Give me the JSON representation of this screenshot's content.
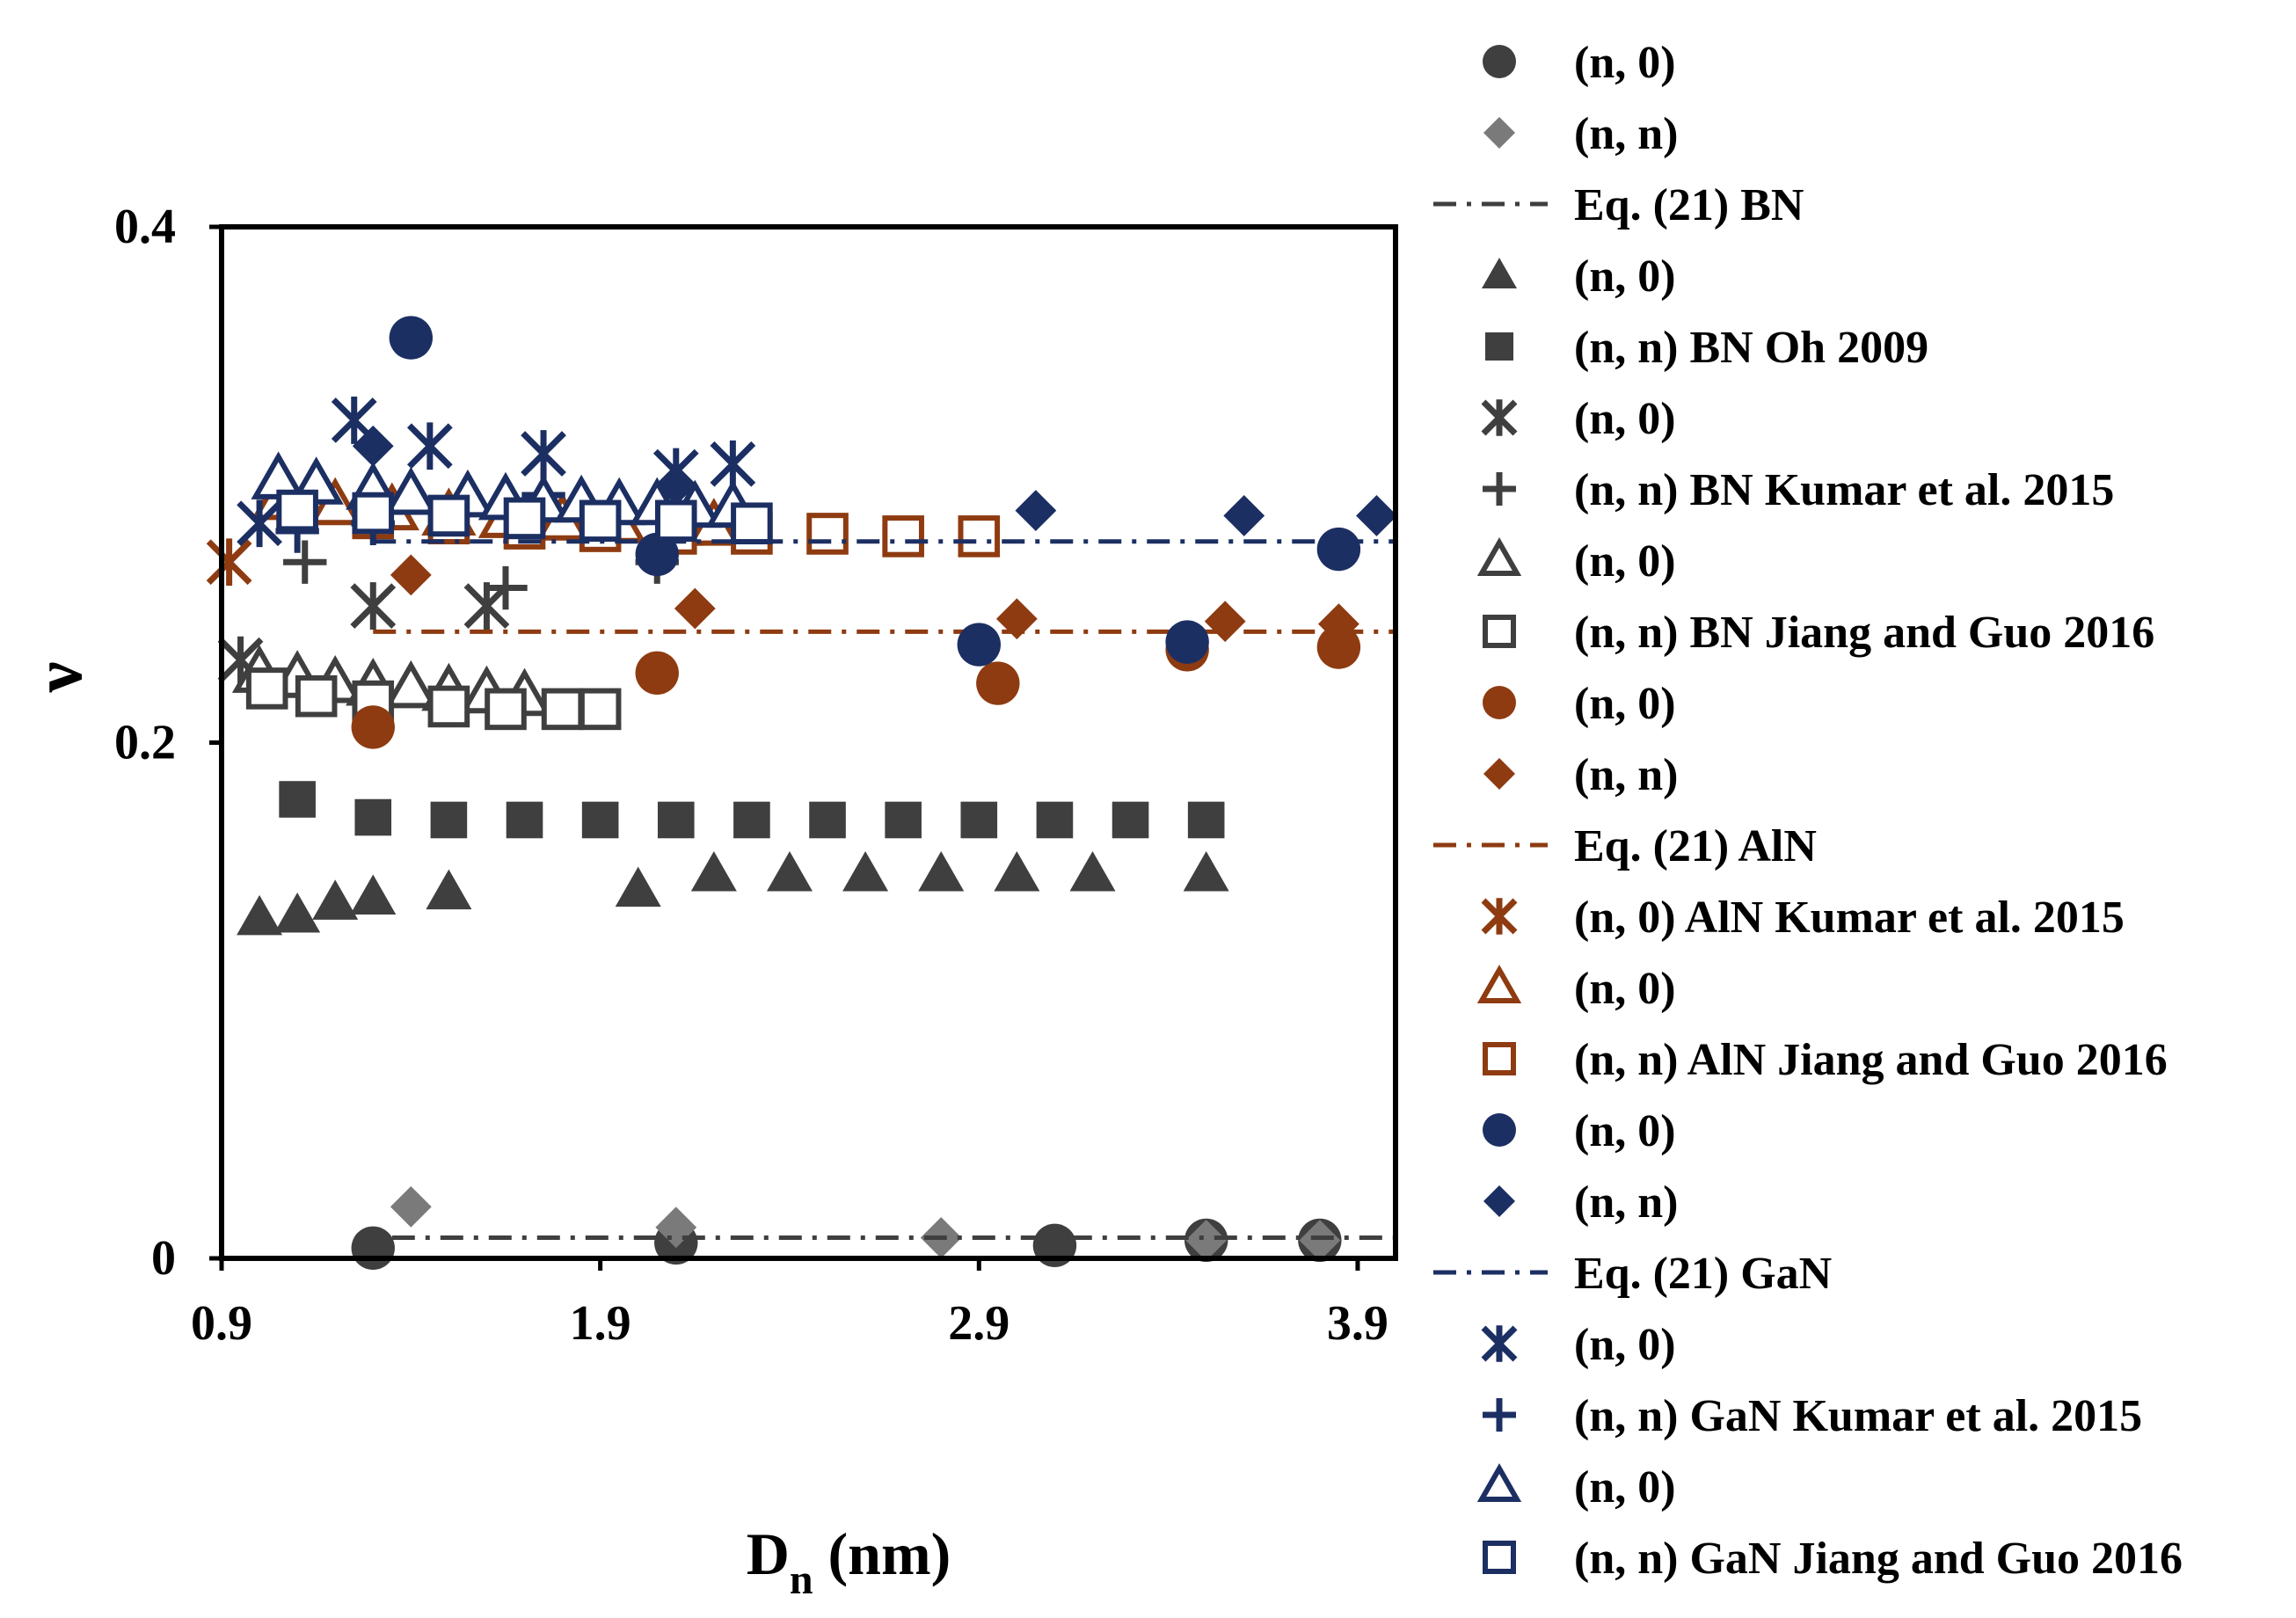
{
  "colors": {
    "bn": "#3f3f3f",
    "bn_light": "#7a7a7a",
    "aln": "#8e3b11",
    "gan": "#1c2f63",
    "axis": "#000000"
  },
  "chart_data": {
    "type": "scatter",
    "title": "",
    "xlabel": "D",
    "xlabel_sub": "n",
    "xlabel_unit": " (nm)",
    "ylabel": "ν",
    "xlim": [
      0.9,
      4.0
    ],
    "ylim": [
      0,
      0.4
    ],
    "x_ticks": [
      {
        "value": 0.9,
        "label": "0.9"
      },
      {
        "value": 1.9,
        "label": "1.9"
      },
      {
        "value": 2.9,
        "label": "2.9"
      },
      {
        "value": 3.9,
        "label": "3.9"
      }
    ],
    "y_ticks": [
      {
        "value": 0.0,
        "label": "0"
      },
      {
        "value": 0.2,
        "label": "0.2"
      },
      {
        "value": 0.4,
        "label": "0.4"
      }
    ],
    "grid": false,
    "legend_position": "right",
    "series": [
      {
        "name": "(n, 0)",
        "marker": "circle",
        "color": "#3f3f3f",
        "fill": true,
        "x": [
          1.3,
          2.1,
          3.1,
          3.5,
          3.8
        ],
        "y": [
          0.004,
          0.006,
          0.005,
          0.007,
          0.007
        ]
      },
      {
        "name": "(n, n)",
        "marker": "diamond",
        "color": "#7a7a7a",
        "fill": true,
        "x": [
          1.4,
          2.1,
          2.8,
          3.5,
          3.8
        ],
        "y": [
          0.02,
          0.012,
          0.008,
          0.007,
          0.007
        ]
      },
      {
        "name": "Eq. (21) BN",
        "marker": "line",
        "color": "#3f3f3f",
        "dash": "dashdot",
        "x": [
          1.35,
          4.0
        ],
        "y": [
          0.008,
          0.008
        ]
      },
      {
        "name": "(n, 0)",
        "marker": "triangle",
        "color": "#3f3f3f",
        "fill": true,
        "x": [
          1.0,
          1.1,
          1.2,
          1.3,
          1.5,
          2.0,
          2.2,
          2.4,
          2.6,
          2.8,
          3.0,
          3.2,
          3.5
        ],
        "y": [
          0.132,
          0.133,
          0.138,
          0.14,
          0.142,
          0.143,
          0.149,
          0.149,
          0.149,
          0.149,
          0.149,
          0.149,
          0.149
        ]
      },
      {
        "name": "(n, n) BN Oh 2009",
        "marker": "square",
        "color": "#3f3f3f",
        "fill": true,
        "x": [
          1.1,
          1.3,
          1.5,
          1.7,
          1.9,
          2.1,
          2.3,
          2.5,
          2.7,
          2.9,
          3.1,
          3.3,
          3.5
        ],
        "y": [
          0.178,
          0.171,
          0.17,
          0.17,
          0.17,
          0.17,
          0.17,
          0.17,
          0.17,
          0.17,
          0.17,
          0.17,
          0.17
        ]
      },
      {
        "name": "(n, 0)",
        "marker": "asterisk",
        "color": "#3f3f3f",
        "fill": false,
        "x": [
          0.95,
          1.3,
          1.6
        ],
        "y": [
          0.232,
          0.253,
          0.253
        ]
      },
      {
        "name": "(n, n) BN Kumar et al. 2015",
        "marker": "plus",
        "color": "#3f3f3f",
        "fill": false,
        "x": [
          1.12,
          1.65,
          2.05
        ],
        "y": [
          0.27,
          0.26,
          0.27
        ]
      },
      {
        "name": "(n, 0)",
        "marker": "triangle",
        "color": "#3f3f3f",
        "fill": false,
        "x": [
          1.0,
          1.1,
          1.2,
          1.3,
          1.4,
          1.5,
          1.6,
          1.7
        ],
        "y": [
          0.227,
          0.225,
          0.223,
          0.222,
          0.221,
          0.22,
          0.219,
          0.218
        ]
      },
      {
        "name": "(n, n) BN Jiang and Guo 2016",
        "marker": "square",
        "color": "#3f3f3f",
        "fill": false,
        "x": [
          1.02,
          1.15,
          1.3,
          1.5,
          1.65,
          1.8,
          1.9
        ],
        "y": [
          0.221,
          0.218,
          0.216,
          0.214,
          0.213,
          0.213,
          0.213
        ]
      },
      {
        "name": "(n, 0)",
        "marker": "circle",
        "color": "#8e3b11",
        "fill": true,
        "x": [
          1.3,
          2.05,
          2.95,
          3.45,
          3.85
        ],
        "y": [
          0.206,
          0.227,
          0.223,
          0.236,
          0.237
        ]
      },
      {
        "name": "(n, n)",
        "marker": "diamond",
        "color": "#8e3b11",
        "fill": true,
        "x": [
          1.4,
          2.15,
          3.0,
          3.55,
          3.85
        ],
        "y": [
          0.265,
          0.252,
          0.248,
          0.247,
          0.246
        ]
      },
      {
        "name": "Eq. (21) AlN",
        "marker": "line",
        "color": "#8e3b11",
        "dash": "dashdot",
        "x": [
          1.3,
          4.0
        ],
        "y": [
          0.243,
          0.243
        ]
      },
      {
        "name": "(n, 0) AlN Kumar et al. 2015",
        "marker": "asterisk",
        "color": "#8e3b11",
        "fill": false,
        "x": [
          0.92
        ],
        "y": [
          0.27
        ]
      },
      {
        "name": "(n, 0)",
        "marker": "triangle",
        "color": "#8e3b11",
        "fill": false,
        "x": [
          1.05,
          1.2,
          1.35,
          1.5,
          1.65,
          1.8,
          1.95,
          2.1,
          2.2
        ],
        "y": [
          0.294,
          0.292,
          0.29,
          0.288,
          0.287,
          0.286,
          0.285,
          0.284,
          0.284
        ]
      },
      {
        "name": "(n, n) AlN Jiang and Guo 2016",
        "marker": "square",
        "color": "#8e3b11",
        "fill": false,
        "x": [
          1.1,
          1.3,
          1.5,
          1.7,
          1.9,
          2.1,
          2.3,
          2.5,
          2.7,
          2.9
        ],
        "y": [
          0.29,
          0.287,
          0.285,
          0.283,
          0.282,
          0.281,
          0.281,
          0.281,
          0.28,
          0.28
        ]
      },
      {
        "name": "(n, 0)",
        "marker": "circle",
        "color": "#1c2f63",
        "fill": true,
        "x": [
          1.4,
          2.05,
          2.9,
          3.45,
          3.85
        ],
        "y": [
          0.357,
          0.273,
          0.238,
          0.239,
          0.275
        ]
      },
      {
        "name": "(n, n)",
        "marker": "diamond",
        "color": "#1c2f63",
        "fill": true,
        "x": [
          1.3,
          2.1,
          3.05,
          3.6,
          3.95
        ],
        "y": [
          0.315,
          0.3,
          0.29,
          0.288,
          0.288
        ]
      },
      {
        "name": "Eq. (21) GaN",
        "marker": "line",
        "color": "#1c2f63",
        "dash": "dashdot",
        "x": [
          1.3,
          4.0
        ],
        "y": [
          0.278,
          0.278
        ]
      },
      {
        "name": "(n, 0)",
        "marker": "asterisk",
        "color": "#1c2f63",
        "fill": false,
        "x": [
          1.0,
          1.25,
          1.45,
          1.75,
          2.1,
          2.25
        ],
        "y": [
          0.285,
          0.325,
          0.315,
          0.312,
          0.305,
          0.308
        ]
      },
      {
        "name": "(n, n) GaN Kumar et al. 2015",
        "marker": "plus",
        "color": "#1c2f63",
        "fill": false,
        "x": [
          1.1,
          1.3,
          1.75
        ],
        "y": [
          0.282,
          0.285,
          0.296
        ]
      },
      {
        "name": "(n, 0)",
        "marker": "triangle",
        "color": "#1c2f63",
        "fill": false,
        "x": [
          1.05,
          1.15,
          1.3,
          1.4,
          1.55,
          1.65,
          1.75,
          1.85,
          1.95,
          2.05,
          2.15,
          2.25
        ],
        "y": [
          0.302,
          0.3,
          0.298,
          0.296,
          0.295,
          0.294,
          0.293,
          0.293,
          0.292,
          0.292,
          0.291,
          0.291
        ]
      },
      {
        "name": "(n, n) GaN Jiang and Guo 2016",
        "marker": "square",
        "color": "#1c2f63",
        "fill": false,
        "x": [
          1.1,
          1.3,
          1.5,
          1.7,
          1.9,
          2.1,
          2.3
        ],
        "y": [
          0.29,
          0.289,
          0.288,
          0.287,
          0.286,
          0.286,
          0.285
        ]
      }
    ]
  }
}
